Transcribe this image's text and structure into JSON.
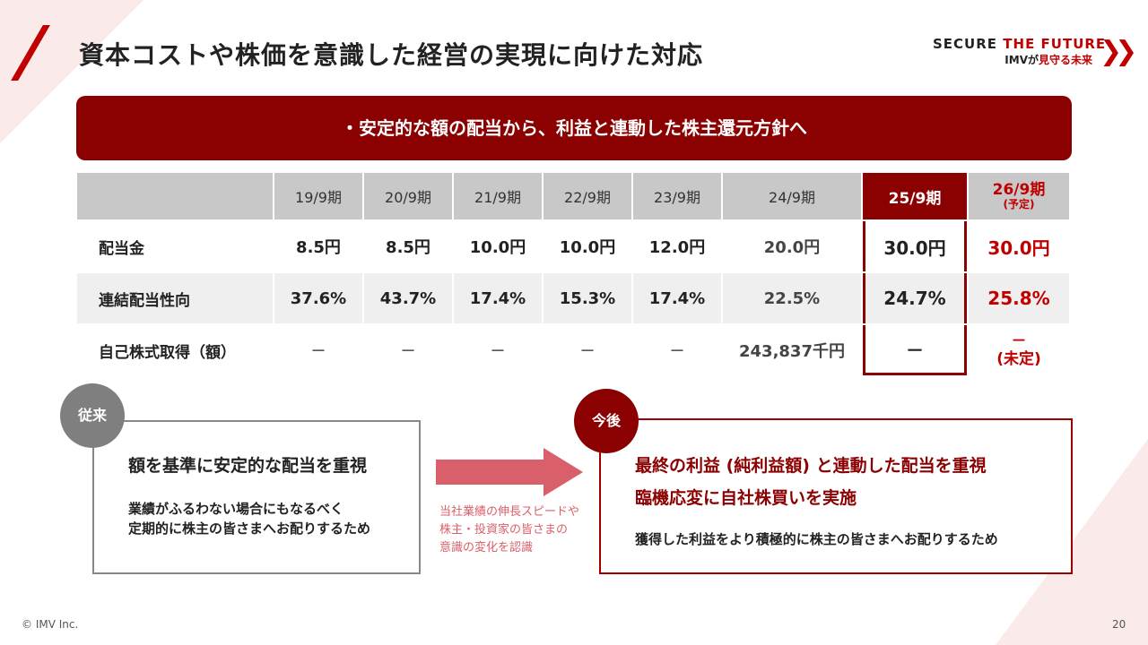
{
  "title": "資本コストや株価を意識した経営の実現に向けた対応",
  "logo": {
    "secure": "SECURE",
    "the_future": "THE FUTURE",
    "imv": "IMVが",
    "tagline": "見守る未来"
  },
  "banner": "・安定的な額の配当から、利益と連動した株主還元方針へ",
  "table": {
    "headers": [
      "",
      "19/9期",
      "20/9期",
      "21/9期",
      "22/9期",
      "23/9期",
      "24/9期",
      "25/9期",
      "26/9期"
    ],
    "plan_note": "(予定)",
    "rows": [
      {
        "label": "配当金",
        "values": [
          "8.5円",
          "8.5円",
          "10.0円",
          "10.0円",
          "12.0円",
          "20.0円",
          "30.0円",
          "30.0円"
        ]
      },
      {
        "label": "連結配当性向",
        "values": [
          "37.6%",
          "43.7%",
          "17.4%",
          "15.3%",
          "17.4%",
          "22.5%",
          "24.7%",
          "25.8%"
        ]
      },
      {
        "label": "自己株式取得（額）",
        "values": [
          "－",
          "－",
          "－",
          "－",
          "－",
          "243,837千円",
          "－",
          "－"
        ],
        "last_note": "(未定)"
      }
    ]
  },
  "before": {
    "badge": "従来",
    "heading": "額を基準に安定的な配当を重視",
    "body1": "業績がふるわない場合にもなるべく",
    "body2": "定期的に株主の皆さまへお配りするため"
  },
  "transition": {
    "line1": "当社業績の伸長スピードや",
    "line2": "株主・投資家の皆さまの",
    "line3": "意識の変化を認識"
  },
  "after": {
    "badge": "今後",
    "heading1": "最終の利益 (純利益額) と連動した配当を重視",
    "heading2": "臨機応変に自社株買いを実施",
    "body": "獲得した利益をより積極的に株主の皆さまへお配りするため"
  },
  "footer": {
    "copyright": "© IMV Inc.",
    "page": "20"
  },
  "colors": {
    "accent": "#8b0000",
    "red": "#c00000",
    "arrow": "#d9606a"
  }
}
